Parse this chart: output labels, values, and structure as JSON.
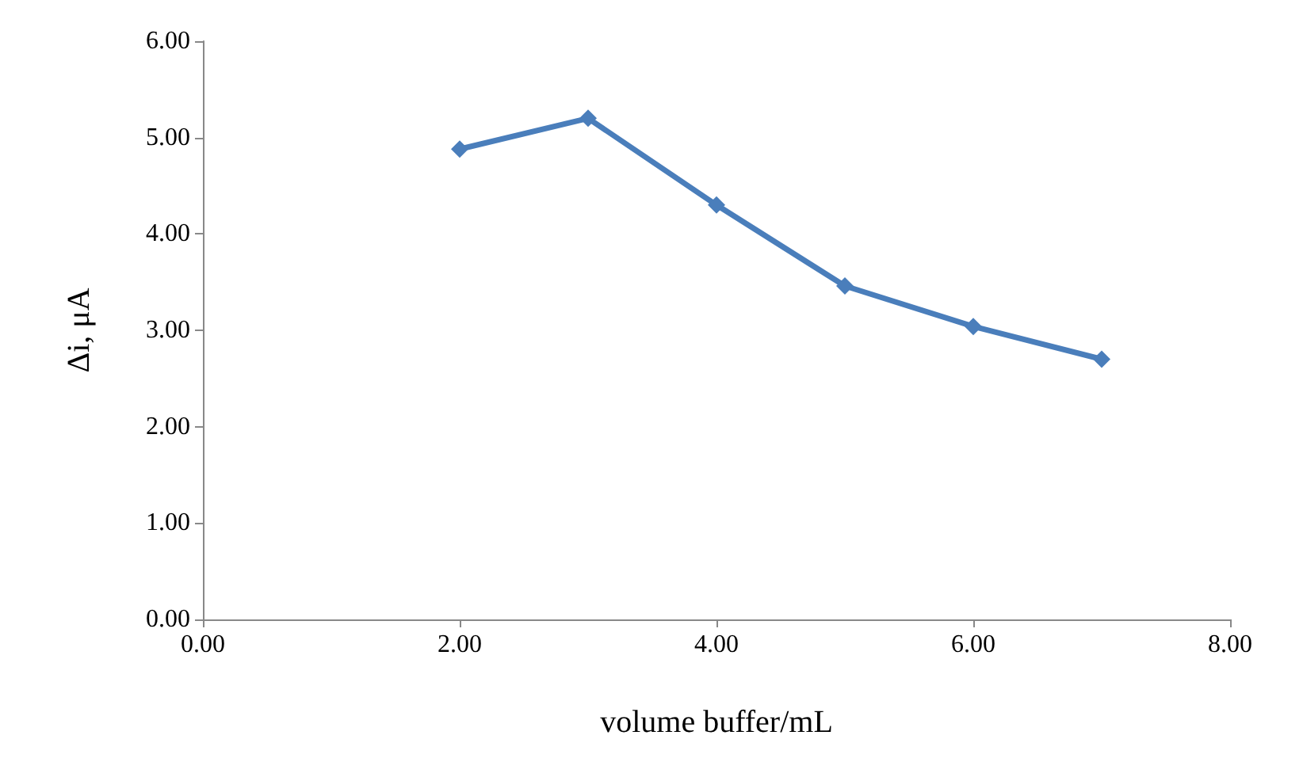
{
  "chart_data": {
    "type": "line",
    "xlabel": "volume buffer/mL",
    "ylabel": "Δi, μA",
    "x": [
      2,
      3,
      4,
      5,
      6,
      7
    ],
    "series": [
      {
        "color": "#4a7ebb",
        "values": [
          4.88,
          5.2,
          4.3,
          3.46,
          3.04,
          2.7
        ]
      }
    ],
    "xlim": [
      0,
      8
    ],
    "xticks": [
      {
        "value": 0,
        "label": "0.00"
      },
      {
        "value": 2,
        "label": "2.00"
      },
      {
        "value": 4,
        "label": "4.00"
      },
      {
        "value": 6,
        "label": "6.00"
      },
      {
        "value": 8,
        "label": "8.00"
      }
    ],
    "ylim": [
      0,
      6
    ],
    "yticks": [
      {
        "value": 0,
        "label": "0.00"
      },
      {
        "value": 1,
        "label": "1.00"
      },
      {
        "value": 2,
        "label": "2.00"
      },
      {
        "value": 3,
        "label": "3.00"
      },
      {
        "value": 4,
        "label": "4.00"
      },
      {
        "value": 5,
        "label": "5.00"
      },
      {
        "value": 6,
        "label": "6.00"
      }
    ],
    "grid": false,
    "marker": "diamond",
    "line_style": "solid"
  }
}
